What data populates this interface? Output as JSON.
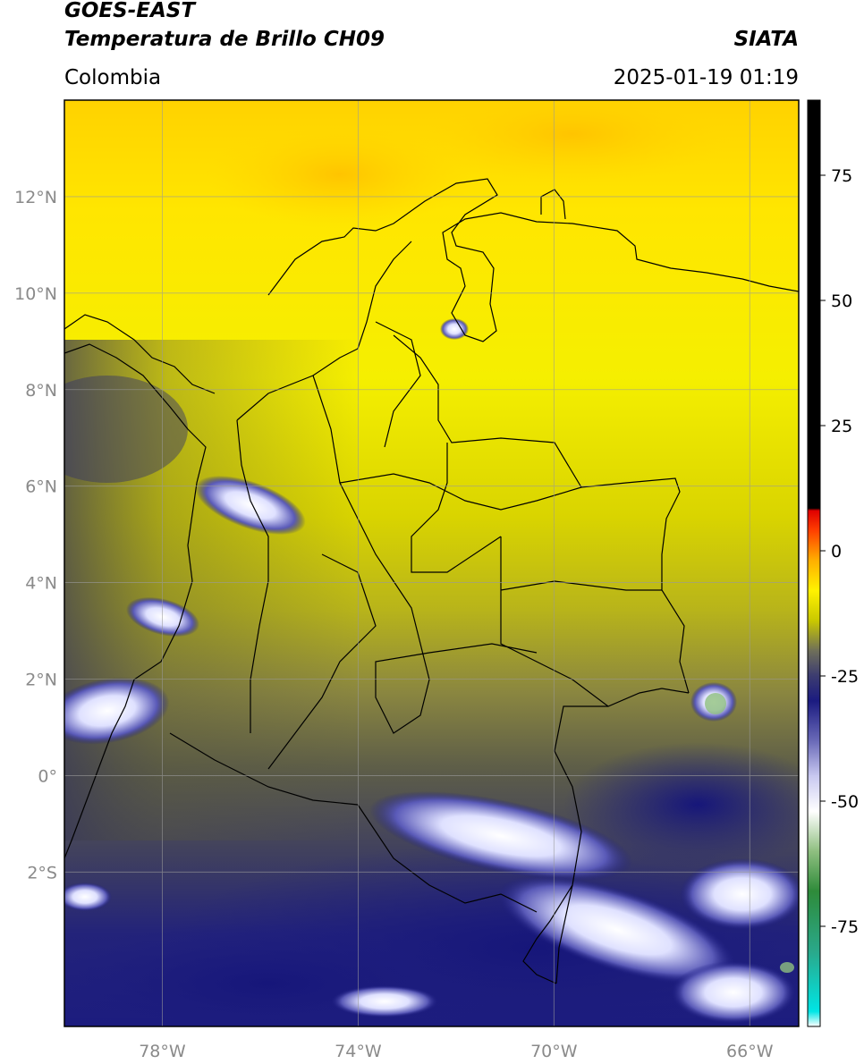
{
  "header": {
    "satellite": "GOES-EAST",
    "product": "Temperatura de Brillo CH09",
    "brand": "SIATA",
    "region": "Colombia",
    "timestamp": "2025-01-19 01:19"
  },
  "map": {
    "extent": {
      "lon_min": -80.0,
      "lon_max": -65.0,
      "lat_min": -5.2,
      "lat_max": 14.0
    },
    "lat_ticks": [
      {
        "value": 12,
        "label": "12°N"
      },
      {
        "value": 10,
        "label": "10°N"
      },
      {
        "value": 8,
        "label": "8°N"
      },
      {
        "value": 6,
        "label": "6°N"
      },
      {
        "value": 4,
        "label": "4°N"
      },
      {
        "value": 2,
        "label": "2°N"
      },
      {
        "value": 0,
        "label": "0°"
      },
      {
        "value": -2,
        "label": "2°S"
      }
    ],
    "lon_ticks": [
      {
        "value": -78,
        "label": "78°W"
      },
      {
        "value": -74,
        "label": "74°W"
      },
      {
        "value": -70,
        "label": "70°W"
      },
      {
        "value": -66,
        "label": "66°W"
      }
    ],
    "grid": true,
    "colors": {
      "warm_yellow": "#f5ef00",
      "warm_orange": "#ffd000",
      "olive": "#6e6e3c",
      "dark_olive": "#4a4a38",
      "navy": "#1b1b7a",
      "cloud_white": "#eef0ff",
      "border_line": "#000000",
      "grid_line": "#9a9a9a"
    }
  },
  "colorbar": {
    "vmin": -95,
    "vmax": 90,
    "ticks": [
      {
        "value": 75,
        "label": "75"
      },
      {
        "value": 50,
        "label": "50"
      },
      {
        "value": 25,
        "label": "25"
      },
      {
        "value": 0,
        "label": "0"
      },
      {
        "value": -25,
        "label": "-25"
      },
      {
        "value": -50,
        "label": "-50"
      },
      {
        "value": -75,
        "label": "-75"
      }
    ],
    "stops": [
      {
        "value": -95,
        "color": "#ffffff"
      },
      {
        "value": -92,
        "color": "#00e5e5"
      },
      {
        "value": -80,
        "color": "#2aa88a"
      },
      {
        "value": -68,
        "color": "#2e8b3a"
      },
      {
        "value": -60,
        "color": "#8fbf80"
      },
      {
        "value": -52,
        "color": "#ffffff"
      },
      {
        "value": -45,
        "color": "#c8c8f0"
      },
      {
        "value": -38,
        "color": "#6a6ab8"
      },
      {
        "value": -30,
        "color": "#1b1b80"
      },
      {
        "value": -25,
        "color": "#3c3c70"
      },
      {
        "value": -20,
        "color": "#6e6e5a"
      },
      {
        "value": -14,
        "color": "#c9c800"
      },
      {
        "value": -8,
        "color": "#fff200"
      },
      {
        "value": -2,
        "color": "#ffb000"
      },
      {
        "value": 4,
        "color": "#ff4000"
      },
      {
        "value": 8,
        "color": "#e00000"
      },
      {
        "value": 8.5,
        "color": "#000000"
      },
      {
        "value": 90,
        "color": "#000000"
      }
    ]
  }
}
